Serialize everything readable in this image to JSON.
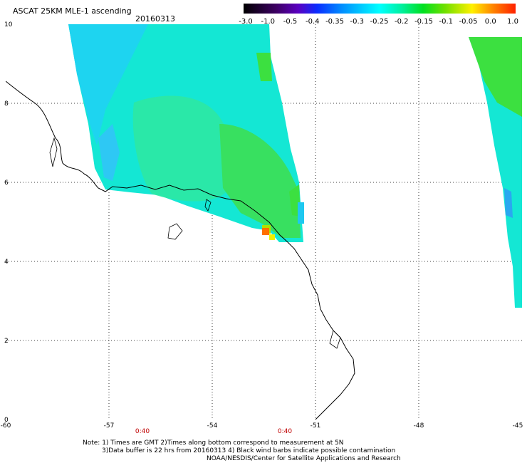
{
  "header": {
    "title": "ASCAT 25KM MLE-1 ascending",
    "date": "20160313"
  },
  "colorbar": {
    "labels": [
      "-3.0",
      "-1.0",
      "-0.5",
      "-0.4",
      "-0.35",
      "-0.3",
      "-0.25",
      "-0.2",
      "-0.15",
      "-0.1",
      "-0.05",
      "0.0",
      "1.0"
    ],
    "colors": [
      "#000000",
      "#3d0063",
      "#5a00c0",
      "#0a2cff",
      "#008cff",
      "#00cfff",
      "#00ffff",
      "#00f0a0",
      "#00e020",
      "#70e000",
      "#fff000",
      "#ff8000",
      "#ff2000"
    ]
  },
  "axes": {
    "lat_labels": [
      "10",
      "8",
      "6",
      "4",
      "2",
      "0"
    ],
    "lon_labels": [
      "-60",
      "-57",
      "-54",
      "-51",
      "-48",
      "-45"
    ]
  },
  "times": [
    "0:40",
    "0:40"
  ],
  "notes": {
    "line1": "Note: 1) Times are GMT 2)Times along bottom correspond to measurement at 5N",
    "line2": "3)Data buffer is 22 hrs from 20160313 4) Black wind barbs indicate possible contamination",
    "line3": "NOAA/NESDIS/Center for Satellite Applications and Research"
  }
}
